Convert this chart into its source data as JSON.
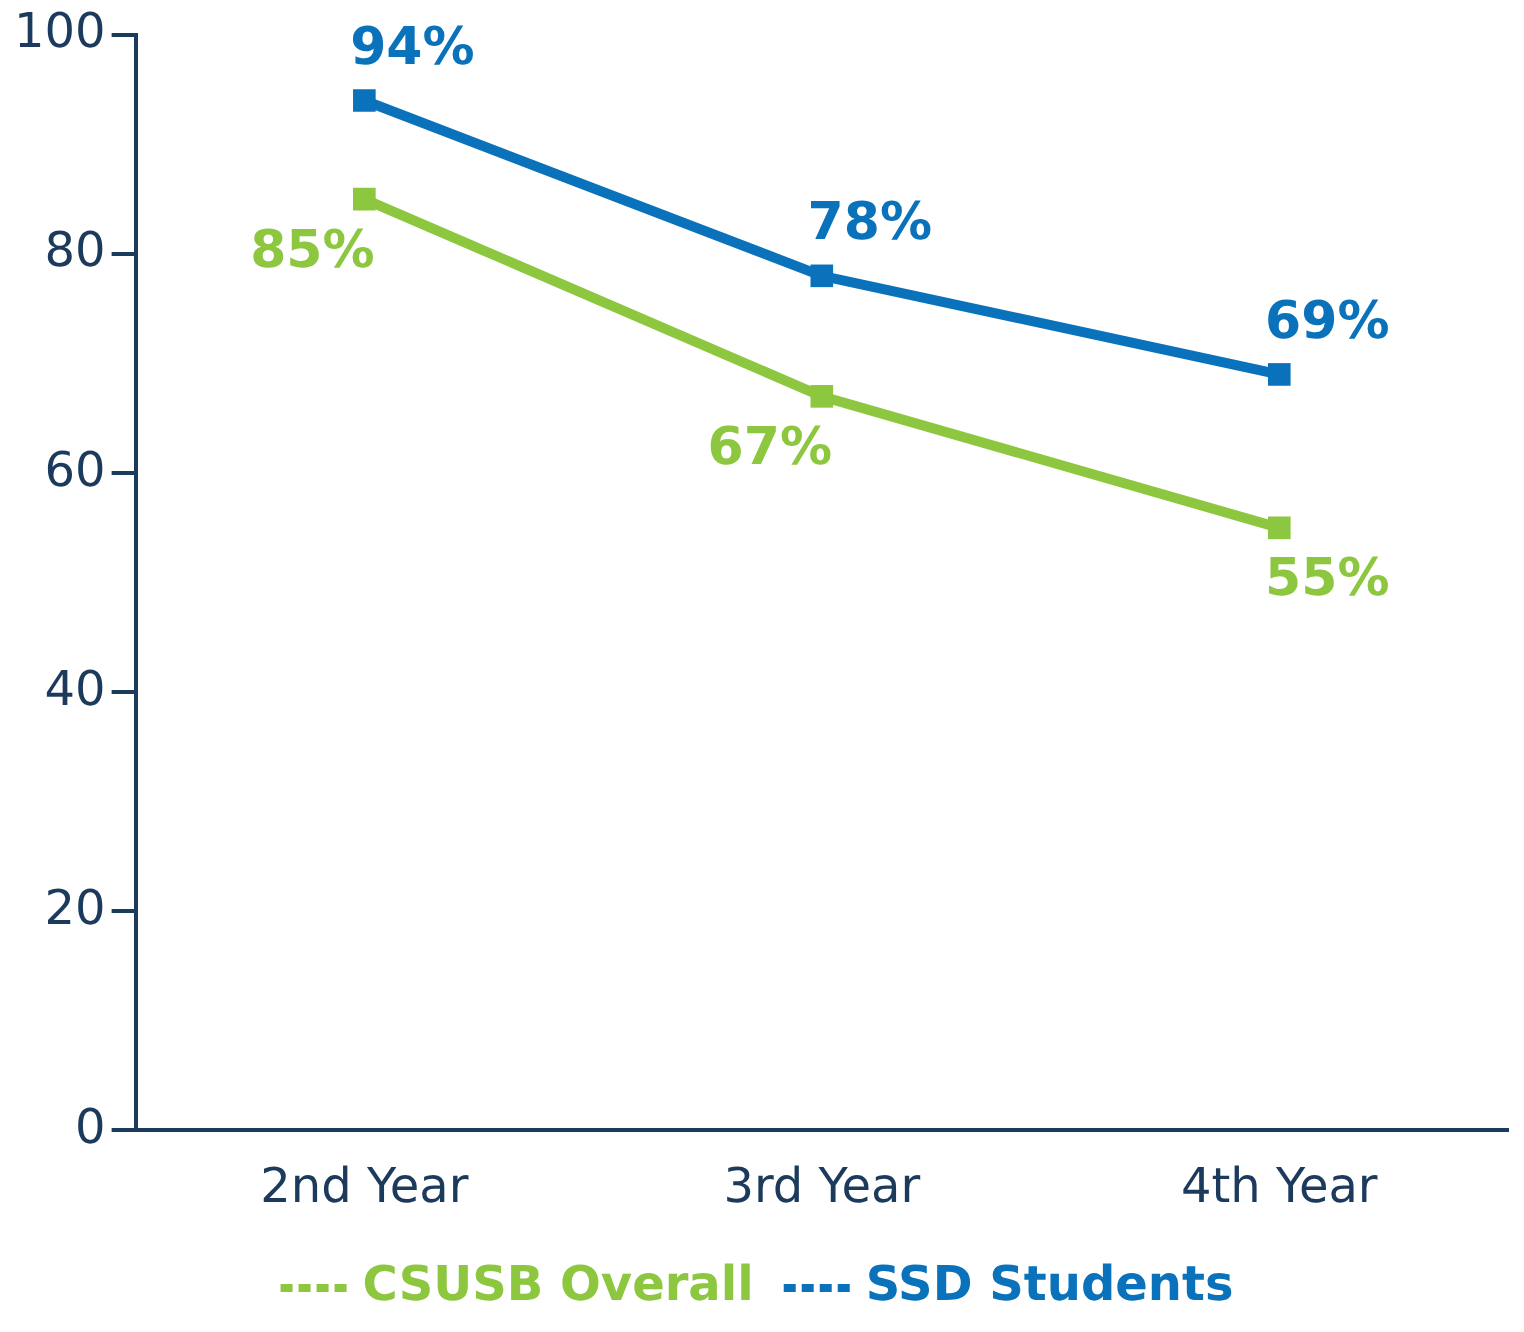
{
  "chart_data": {
    "type": "line",
    "categories": [
      "2nd Year",
      "3rd Year",
      "4th Year"
    ],
    "series": [
      {
        "name": "CSUSB Overall",
        "color": "#8dc63f",
        "values": [
          85,
          67,
          55
        ],
        "value_labels": [
          "85%",
          "67%",
          "55%"
        ]
      },
      {
        "name": "SSD Students",
        "color": "#0a72ba",
        "values": [
          94,
          78,
          69
        ],
        "value_labels": [
          "94%",
          "78%",
          "69%"
        ]
      }
    ],
    "ylim": [
      0,
      100
    ],
    "yticks": [
      0,
      20,
      40,
      60,
      80,
      100
    ],
    "grid": false,
    "legend": "bottom",
    "marker": "square",
    "line_style": "solid"
  }
}
